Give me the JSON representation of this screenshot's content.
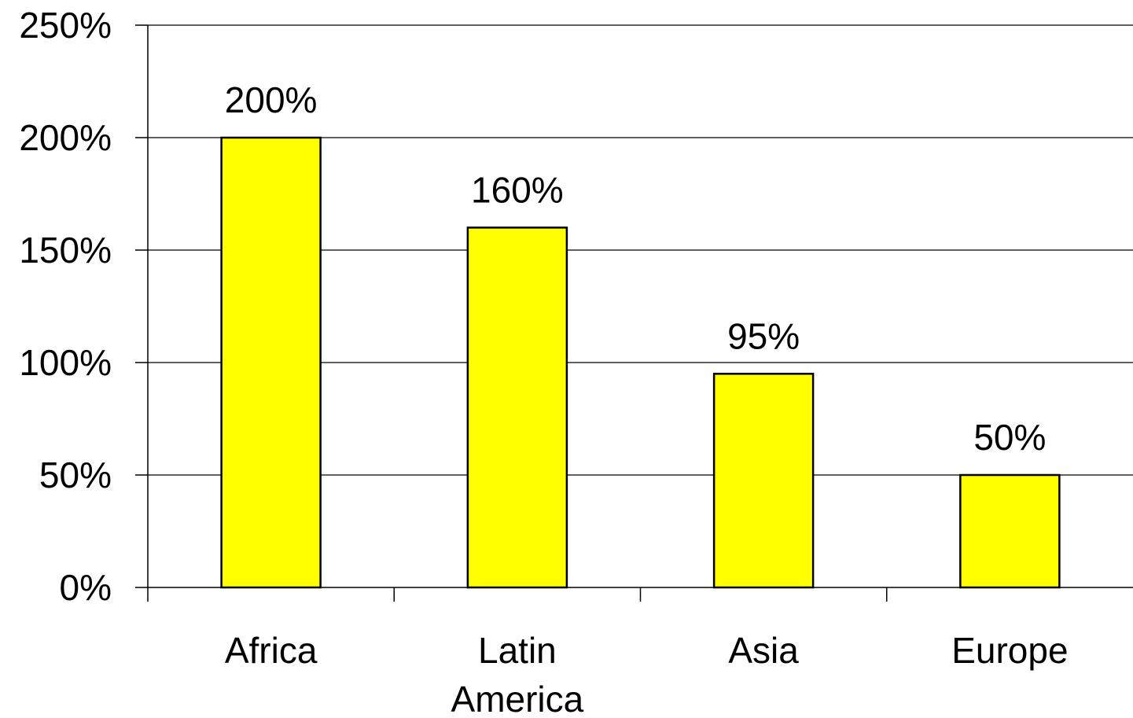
{
  "chart_data": {
    "type": "bar",
    "title": "",
    "xlabel": "",
    "ylabel": "",
    "categories": [
      "Africa",
      "Latin America",
      "Asia",
      "Europe"
    ],
    "category_lines": [
      [
        "Africa"
      ],
      [
        "Latin",
        "America"
      ],
      [
        "Asia"
      ],
      [
        "Europe"
      ]
    ],
    "values": [
      200,
      160,
      95,
      50
    ],
    "value_labels": [
      "200%",
      "160%",
      "95%",
      "50%"
    ],
    "ylim": [
      0,
      250
    ],
    "yticks": [
      0,
      50,
      100,
      150,
      200,
      250
    ],
    "ytick_labels": [
      "0%",
      "50%",
      "100%",
      "150%",
      "200%",
      "250%"
    ],
    "grid": true,
    "legend": "none",
    "colors": {
      "bar_fill": "#FFFF00",
      "bar_stroke": "#000000",
      "grid": "#000000",
      "axis": "#000000"
    }
  }
}
